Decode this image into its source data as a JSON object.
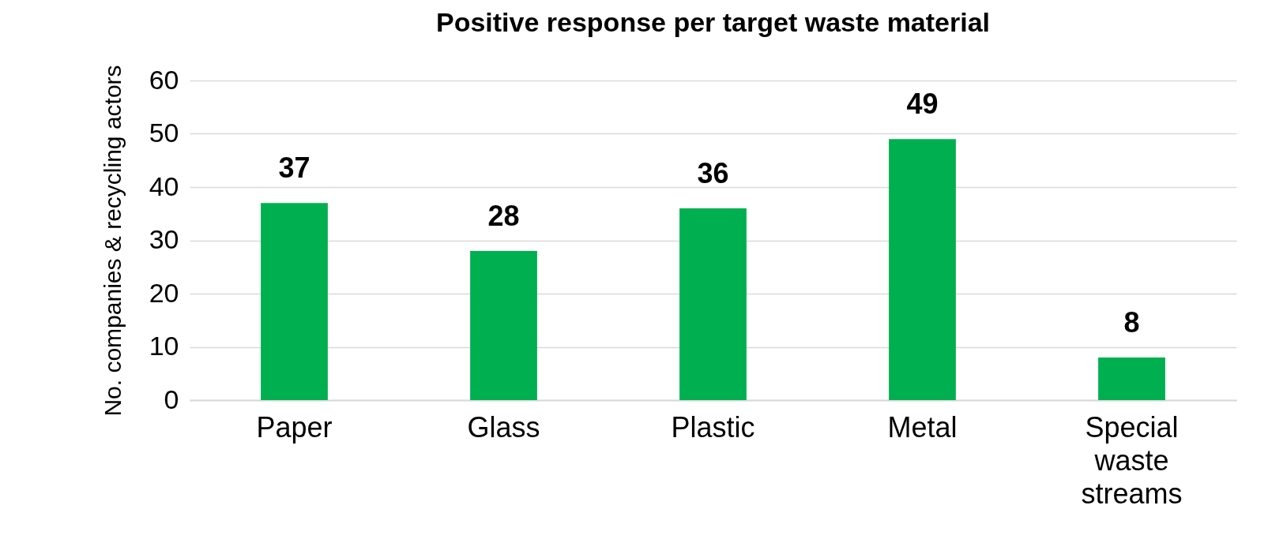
{
  "chart_data": {
    "type": "bar",
    "title": "Positive response per target waste material",
    "ylabel": "No. companies & recycling actors",
    "categories": [
      "Paper",
      "Glass",
      "Plastic",
      "Metal",
      "Special\nwaste\nstreams"
    ],
    "values": [
      37,
      28,
      36,
      49,
      8
    ],
    "color": "#00b050",
    "ylim": [
      0,
      60
    ],
    "yticks": [
      0,
      10,
      20,
      30,
      40,
      50,
      60
    ],
    "grid": "y",
    "data_labels": true
  }
}
